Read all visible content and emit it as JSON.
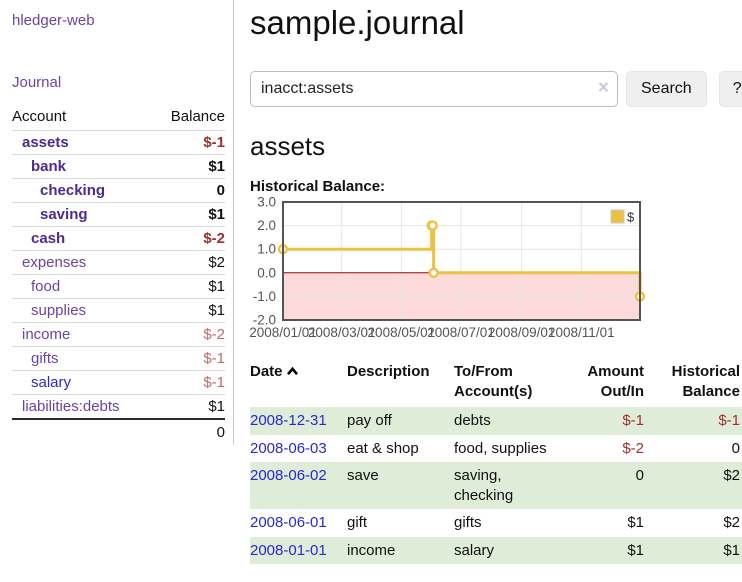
{
  "app": {
    "brand": "hledger-web",
    "nav_journal": "Journal"
  },
  "colors": {
    "purple": "#6b43a4",
    "purple_bold": "#4d2a91",
    "link_blue": "#2929cc",
    "negative": "#a23029",
    "negative_soft": "#c06c66",
    "row_stripe_green": "#deecd8"
  },
  "sidebar": {
    "columns": [
      "Account",
      "Balance"
    ],
    "accounts": [
      {
        "name": "assets",
        "indent": 0,
        "bold": true,
        "balance": "$-1",
        "neg": true,
        "soft": false,
        "blue": false
      },
      {
        "name": "bank",
        "indent": 1,
        "bold": true,
        "balance": "$1",
        "neg": false,
        "soft": false,
        "blue": false
      },
      {
        "name": "checking",
        "indent": 2,
        "bold": true,
        "balance": "0",
        "neg": false,
        "soft": false,
        "blue": false
      },
      {
        "name": "saving",
        "indent": 2,
        "bold": true,
        "balance": "$1",
        "neg": false,
        "soft": false,
        "blue": false
      },
      {
        "name": "cash",
        "indent": 1,
        "bold": true,
        "balance": "$-2",
        "neg": true,
        "soft": false,
        "blue": false
      },
      {
        "name": "expenses",
        "indent": 0,
        "bold": false,
        "balance": "$2",
        "neg": false,
        "soft": false,
        "blue": false
      },
      {
        "name": "food",
        "indent": 1,
        "bold": false,
        "balance": "$1",
        "neg": false,
        "soft": false,
        "blue": false
      },
      {
        "name": "supplies",
        "indent": 1,
        "bold": false,
        "balance": "$1",
        "neg": false,
        "soft": false,
        "blue": false
      },
      {
        "name": "income",
        "indent": 0,
        "bold": false,
        "balance": "$-2",
        "neg": true,
        "soft": true,
        "blue": false
      },
      {
        "name": "gifts",
        "indent": 1,
        "bold": false,
        "balance": "$-1",
        "neg": true,
        "soft": true,
        "blue": false
      },
      {
        "name": "salary",
        "indent": 1,
        "bold": false,
        "balance": "$-1",
        "neg": true,
        "soft": true,
        "blue": true
      },
      {
        "name": "liabilities:debts",
        "indent": 0,
        "bold": false,
        "balance": "$1",
        "neg": false,
        "soft": false,
        "blue": false
      }
    ],
    "total": "0"
  },
  "header": {
    "title": "sample.journal"
  },
  "search": {
    "value": "inacct:assets",
    "clear_label": "×",
    "button": "Search",
    "help": "?"
  },
  "account_page": {
    "heading": "assets",
    "chart_label": "Historical Balance:"
  },
  "chart_data": {
    "type": "line",
    "step": true,
    "title": "Historical Balance",
    "series": [
      {
        "name": "$",
        "color": "#edc240",
        "points": [
          [
            "2008-01-01",
            1
          ],
          [
            "2008-06-01",
            2
          ],
          [
            "2008-06-02",
            2
          ],
          [
            "2008-06-03",
            0
          ],
          [
            "2008-12-31",
            -1
          ]
        ]
      }
    ],
    "x_ticks": [
      "2008/01/01",
      "2008/03/01",
      "2008/05/01",
      "2008/07/01",
      "2008/09/01",
      "2008/11/01"
    ],
    "y_ticks": [
      3.0,
      2.0,
      1.0,
      0.0,
      -1.0,
      -2.0
    ],
    "xlim": [
      "2008-01-01",
      "2008-12-31"
    ],
    "ylim": [
      -2,
      3
    ],
    "grid": true,
    "legend_position": "top-right",
    "negative_region_color": "#fcdada",
    "zero_line_color": "#a40000"
  },
  "register": {
    "columns": {
      "date": "Date",
      "description": "Description",
      "accounts": "To/From Account(s)",
      "amount": "Amount Out/In",
      "balance": "Historical Balance"
    },
    "sort": "ascending",
    "rows": [
      {
        "date": "2008-12-31",
        "description": "pay off",
        "accounts": "debts",
        "amount": "$-1",
        "amount_neg": true,
        "balance": "$-1",
        "balance_neg": true
      },
      {
        "date": "2008-06-03",
        "description": "eat & shop",
        "accounts": "food, supplies",
        "amount": "$-2",
        "amount_neg": true,
        "balance": "0",
        "balance_neg": false
      },
      {
        "date": "2008-06-02",
        "description": "save",
        "accounts": "saving, checking",
        "amount": "0",
        "amount_neg": false,
        "balance": "$2",
        "balance_neg": false
      },
      {
        "date": "2008-06-01",
        "description": "gift",
        "accounts": "gifts",
        "amount": "$1",
        "amount_neg": false,
        "balance": "$2",
        "balance_neg": false
      },
      {
        "date": "2008-01-01",
        "description": "income",
        "accounts": "salary",
        "amount": "$1",
        "amount_neg": false,
        "balance": "$1",
        "balance_neg": false
      }
    ]
  }
}
